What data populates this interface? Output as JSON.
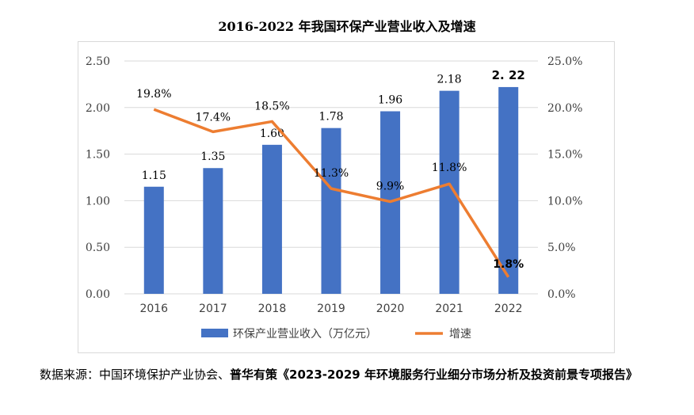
{
  "chart_data": {
    "type": "bar",
    "title": "2016-2022 年我国环保产业营业收入及增速",
    "categories": [
      "2016",
      "2017",
      "2018",
      "2019",
      "2020",
      "2021",
      "2022"
    ],
    "series": [
      {
        "name": "环保产业营业收入（万亿元）",
        "type": "bar",
        "axis": "left",
        "values": [
          1.15,
          1.35,
          1.6,
          1.78,
          1.96,
          2.18,
          2.22
        ],
        "labels": [
          "1.15",
          "1.35",
          "1.60",
          "1.78",
          "1.96",
          "2.18",
          "2. 22"
        ],
        "color": "#4472C4"
      },
      {
        "name": "增速",
        "type": "line",
        "axis": "right",
        "values": [
          19.8,
          17.4,
          18.5,
          11.3,
          9.9,
          11.8,
          1.8
        ],
        "labels": [
          "19.8%",
          "17.4%",
          "18.5%",
          "11.3%",
          "9.9%",
          "11.8%",
          "1.8%"
        ],
        "color": "#ED7D31"
      }
    ],
    "y_left": {
      "min": 0,
      "max": 2.5,
      "ticks": [
        "0.00",
        "0.50",
        "1.00",
        "1.50",
        "2.00",
        "2.50"
      ]
    },
    "y_right": {
      "min": 0,
      "max": 25,
      "ticks": [
        "0.0%",
        "5.0%",
        "10.0%",
        "15.0%",
        "20.0%",
        "25.0%"
      ]
    },
    "grid": true,
    "legend_position": "bottom"
  },
  "source": {
    "prefix": "数据来源：中国环境保护产业协会、",
    "bold": "普华有策《2023-2029 年环境服务行业细分市场分析及投资前景专项报告》"
  }
}
